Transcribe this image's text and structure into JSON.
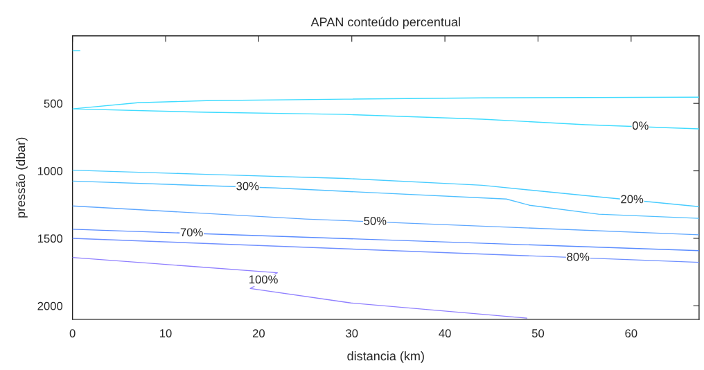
{
  "chart_data": {
    "type": "line",
    "title": "APAN conteúdo percentual",
    "xlabel": "distancia (km)",
    "ylabel": "pressão (dbar)",
    "xlim": [
      0,
      67.3
    ],
    "xticks": [
      0,
      10,
      20,
      30,
      40,
      50,
      60
    ],
    "ylim": [
      2100,
      0
    ],
    "yticks": [
      500,
      1000,
      1500,
      2000
    ],
    "grid": false,
    "legend": false,
    "marker": "none",
    "line_style": "solid",
    "series": [
      {
        "color": "#40dcff",
        "x": [
          67.3,
          44,
          29.2,
          14.4,
          7,
          0,
          14.4,
          29.2,
          44,
          55.1,
          67.3
        ],
        "values": [
          454,
          459,
          469,
          480,
          495,
          541,
          566,
          582,
          617,
          658,
          689
        ]
      },
      {
        "color": "#40dcff",
        "x": [
          0,
          0.8
        ],
        "values": [
          110,
          110
        ]
      },
      {
        "color": "#48ccff",
        "x": [
          0,
          14.4,
          29.2,
          44,
          55.1,
          67.3
        ],
        "values": [
          995,
          1026,
          1056,
          1107,
          1183,
          1265
        ]
      },
      {
        "color": "#50c0ff",
        "x": [
          0,
          21.8,
          46.6,
          49.1,
          56.5,
          67.3
        ],
        "values": [
          1076,
          1127,
          1209,
          1255,
          1321,
          1352
        ]
      },
      {
        "color": "#60a8ff",
        "x": [
          0,
          25,
          67.3
        ],
        "values": [
          1260,
          1357,
          1474
        ]
      },
      {
        "color": "#5a8cff",
        "x": [
          0,
          67.3
        ],
        "values": [
          1433,
          1591
        ]
      },
      {
        "color": "#7090ff",
        "x": [
          0,
          67.3
        ],
        "values": [
          1500,
          1678
        ]
      },
      {
        "color": "#9080ff",
        "x": [
          0,
          22.0,
          19.1,
          29.9,
          48.8
        ],
        "values": [
          1642,
          1755,
          1872,
          1979,
          2091
        ]
      }
    ],
    "annotations": [
      {
        "text": "0%",
        "x": 61.0,
        "y": 672
      },
      {
        "text": "20%",
        "x": 60.1,
        "y": 1217
      },
      {
        "text": "30%",
        "x": 18.8,
        "y": 1120
      },
      {
        "text": "50%",
        "x": 32.5,
        "y": 1378
      },
      {
        "text": "70%",
        "x": 12.8,
        "y": 1463
      },
      {
        "text": "80%",
        "x": 54.3,
        "y": 1644
      },
      {
        "text": "100%",
        "x": 20.5,
        "y": 1812
      }
    ]
  }
}
